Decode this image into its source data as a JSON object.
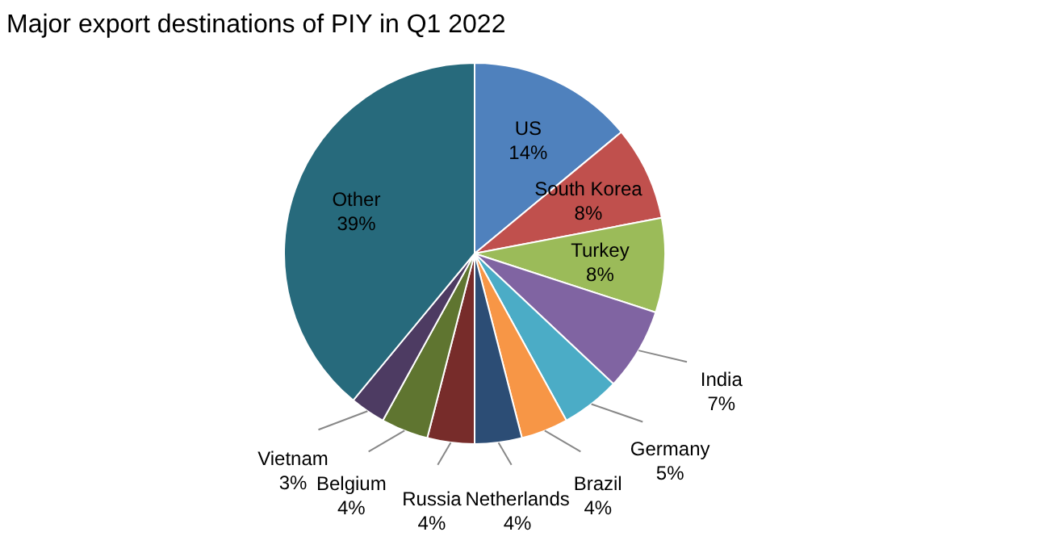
{
  "chart_data": {
    "type": "pie",
    "title": "Major export destinations of PIY in Q1 2022",
    "categories": [
      "US",
      "South Korea",
      "Turkey",
      "India",
      "Germany",
      "Brazil",
      "Netherlands",
      "Russia",
      "Belgium",
      "Vietnam",
      "Other"
    ],
    "values": [
      14,
      8,
      8,
      7,
      5,
      4,
      4,
      4,
      4,
      3,
      39
    ],
    "value_labels": [
      "14%",
      "8%",
      "8%",
      "7%",
      "5%",
      "4%",
      "4%",
      "4%",
      "4%",
      "3%",
      "39%"
    ],
    "colors": [
      "#4f81bd",
      "#c0504d",
      "#9bbb59",
      "#8064a2",
      "#4bacc6",
      "#f79646",
      "#2c4d75",
      "#772c2a",
      "#5f7530",
      "#4d3b62",
      "#276a7c"
    ]
  }
}
